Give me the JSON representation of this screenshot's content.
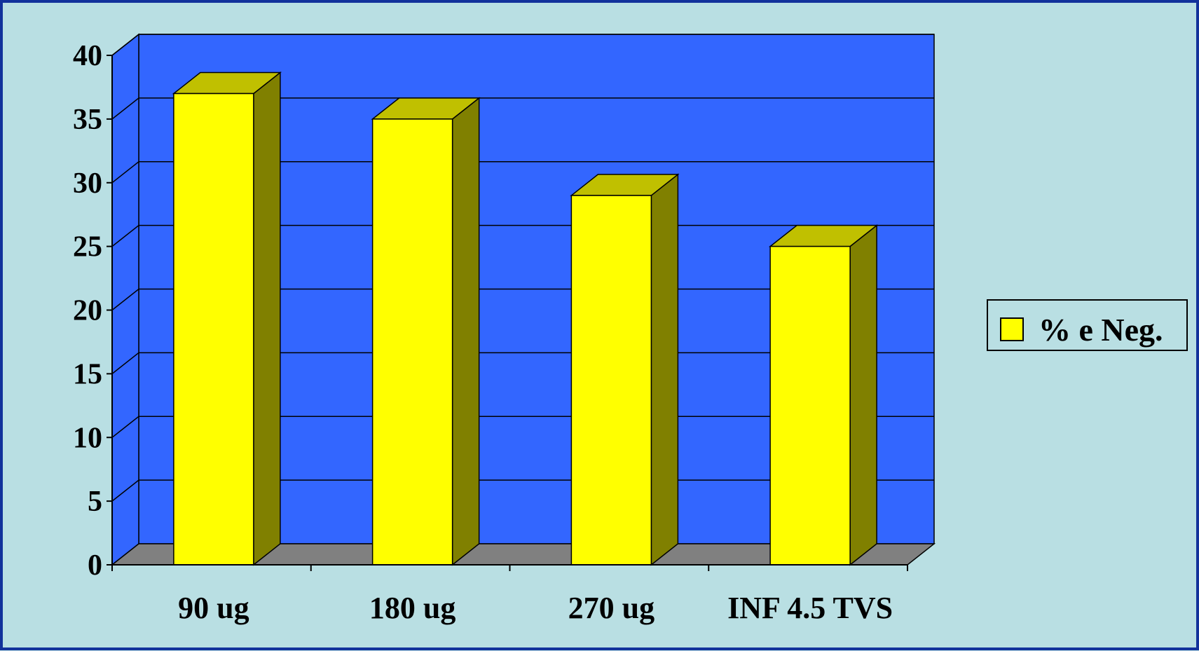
{
  "chart_data": {
    "type": "bar",
    "title": "",
    "xlabel": "",
    "ylabel": "",
    "categories": [
      "90 ug",
      "180 ug",
      "270 ug",
      "INF 4.5 TVS"
    ],
    "series": [
      {
        "name": "% e Neg.",
        "values": [
          37,
          35,
          29,
          25
        ]
      }
    ],
    "ylim": [
      0,
      40
    ],
    "yticks": [
      "0",
      "5",
      "10",
      "15",
      "20",
      "25",
      "30",
      "35",
      "40"
    ],
    "grid": true,
    "legend": "right",
    "three_d": true,
    "colors": {
      "background": "#b9dfe3",
      "plot_wall": "#3366ff",
      "floor": "#808080",
      "bar_front": "#ffff00",
      "bar_top": "#c0c000",
      "bar_side": "#808000",
      "border": "#12329b"
    }
  }
}
